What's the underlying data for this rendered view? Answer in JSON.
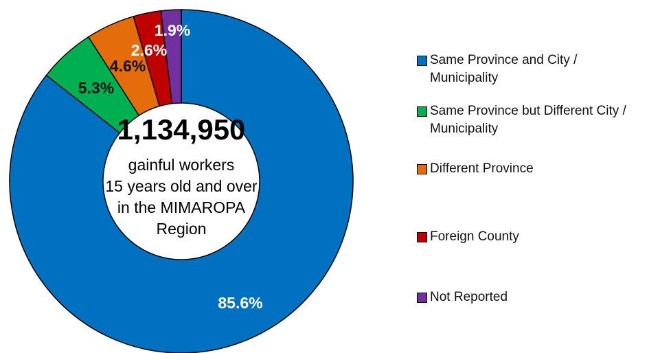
{
  "chart_data": {
    "type": "donut",
    "categories": [
      "Same Province and City / Municipality",
      "Same Province but Different City / Municipality",
      "Different Province",
      "Foreign County",
      "Not Reported"
    ],
    "values": [
      85.6,
      5.3,
      4.6,
      2.6,
      1.9
    ],
    "value_labels": [
      "85.6%",
      "5.3%",
      "4.6%",
      "2.6%",
      "1.9%"
    ],
    "colors": [
      "#0070c0",
      "#00b050",
      "#e46c0a",
      "#c00000",
      "#7030a0"
    ],
    "center_title": "1,134,950",
    "center_text": [
      "gainful workers",
      "15 years old and over",
      "in the MIMAROPA",
      "Region"
    ]
  }
}
